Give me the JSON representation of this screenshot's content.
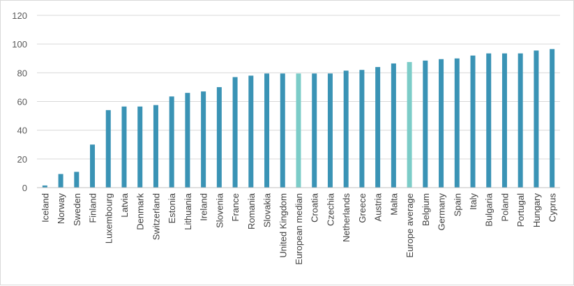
{
  "chart_data": {
    "type": "bar",
    "title": "",
    "xlabel": "",
    "ylabel": "",
    "ylim": [
      0,
      120
    ],
    "yticks": [
      0,
      20,
      40,
      60,
      80,
      100,
      120
    ],
    "grid": true,
    "legend": "none",
    "colors": {
      "default": "#3a93b5",
      "highlight": "#7cccc8",
      "grid": "#d9d9d9",
      "axis": "#bfbfbf"
    },
    "categories": [
      "Iceland",
      "Norway",
      "Sweden",
      "Finland",
      "Luxembourg",
      "Latvia",
      "Denmark",
      "Switzerland",
      "Estonia",
      "Lithuania",
      "Ireland",
      "Slovenia",
      "France",
      "Romania",
      "Slovakia",
      "United Kingdom",
      "European median",
      "Croatia",
      "Czechia",
      "Netherlands",
      "Greece",
      "Austria",
      "Malta",
      "Europe average",
      "Belgium",
      "Germany",
      "Spain",
      "Italy",
      "Bulgaria",
      "Poland",
      "Portugal",
      "Hungary",
      "Cyprus"
    ],
    "values": [
      1.5,
      9.5,
      11,
      30,
      54,
      56.5,
      56.5,
      57.5,
      63.5,
      66,
      67,
      70,
      77,
      78,
      79.5,
      79.5,
      79.5,
      79.5,
      79.5,
      81.5,
      82,
      84,
      86.5,
      87.5,
      88.5,
      89.5,
      90,
      92,
      93.5,
      93.5,
      93.5,
      95.5,
      96.5
    ],
    "highlighted": [
      "European median",
      "Europe average"
    ]
  }
}
